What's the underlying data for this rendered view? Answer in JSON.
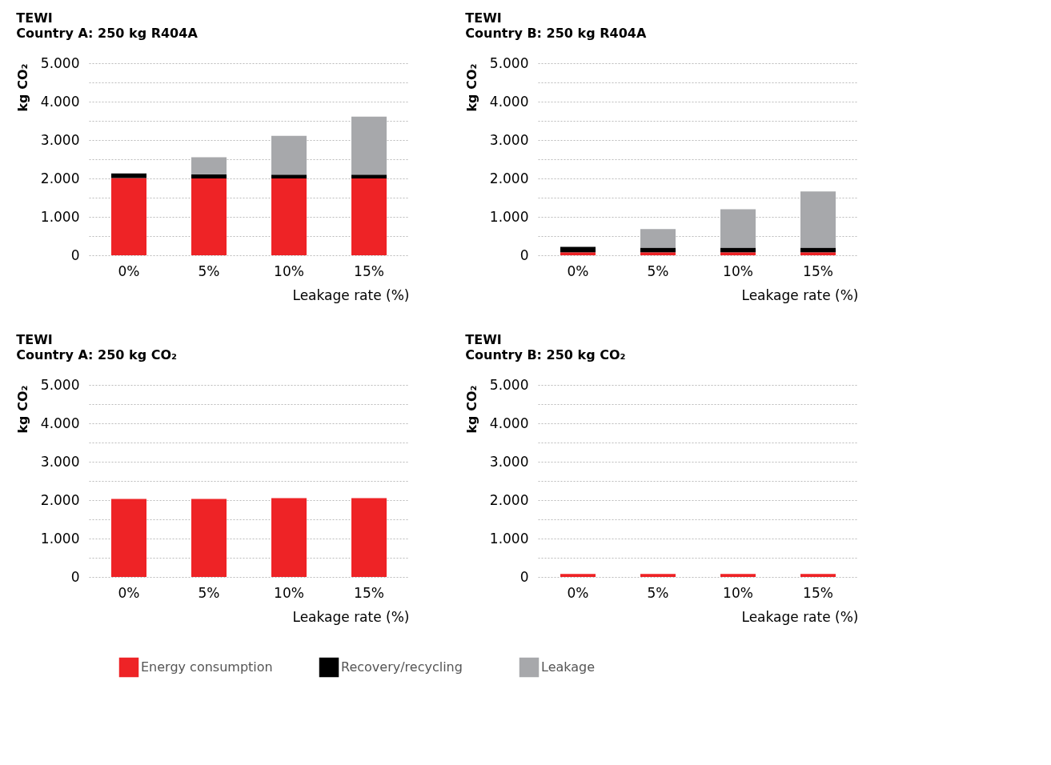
{
  "chart_data": [
    {
      "type": "bar",
      "stacked": true,
      "title": "TEWI",
      "subtitle": "Country A: 250 kg R404A",
      "xlabel": "Leakage rate (%)",
      "ylabel": "kg CO₂",
      "categories": [
        "0%",
        "5%",
        "10%",
        "15%"
      ],
      "series": [
        {
          "name": "Energy consumption",
          "color": "#ee2326",
          "values": [
            2010,
            2000,
            2000,
            2000
          ]
        },
        {
          "name": "Recovery/recycling",
          "color": "#000000",
          "values": [
            120,
            110,
            100,
            100
          ]
        },
        {
          "name": "Leakage",
          "color": "#a7a8ab",
          "values": [
            0,
            440,
            1010,
            1510
          ]
        }
      ],
      "ylim": [
        0,
        5000
      ],
      "yticks": [
        0,
        {
          "value": 500,
          "label": null
        },
        {
          "value": 1000,
          "label": "1.000"
        },
        {
          "value": 1500,
          "label": null
        },
        {
          "value": 2000,
          "label": "2.000"
        },
        {
          "value": 2500,
          "label": null
        },
        {
          "value": 3000,
          "label": "3.000"
        },
        {
          "value": 3500,
          "label": null
        },
        {
          "value": 4000,
          "label": "4.000"
        },
        {
          "value": 4500,
          "label": null
        },
        {
          "value": 5000,
          "label": "5.000"
        }
      ],
      "grid": "y",
      "legend": "bottom"
    },
    {
      "type": "bar",
      "stacked": true,
      "title": "TEWI",
      "subtitle": "Country B: 250 kg R404A",
      "xlabel": "Leakage rate (%)",
      "ylabel": "kg CO₂",
      "categories": [
        "0%",
        "5%",
        "10%",
        "15%"
      ],
      "series": [
        {
          "name": "Energy consumption",
          "color": "#ee2326",
          "values": [
            80,
            80,
            80,
            80
          ]
        },
        {
          "name": "Recovery/recycling",
          "color": "#000000",
          "values": [
            140,
            120,
            120,
            120
          ]
        },
        {
          "name": "Leakage",
          "color": "#a7a8ab",
          "values": [
            0,
            480,
            1000,
            1460
          ]
        }
      ],
      "ylim": [
        0,
        5000
      ],
      "yticks": [
        0,
        {
          "value": 500,
          "label": null
        },
        {
          "value": 1000,
          "label": "1.000"
        },
        {
          "value": 1500,
          "label": null
        },
        {
          "value": 2000,
          "label": "2.000"
        },
        {
          "value": 2500,
          "label": null
        },
        {
          "value": 3000,
          "label": "3.000"
        },
        {
          "value": 3500,
          "label": null
        },
        {
          "value": 4000,
          "label": "4.000"
        },
        {
          "value": 4500,
          "label": null
        },
        {
          "value": 5000,
          "label": "5.000"
        }
      ],
      "grid": "y",
      "legend": "bottom"
    },
    {
      "type": "bar",
      "stacked": true,
      "title": "TEWI",
      "subtitle": "Country A: 250 kg CO₂",
      "xlabel": "Leakage rate (%)",
      "ylabel": "kg CO₂",
      "categories": [
        "0%",
        "5%",
        "10%",
        "15%"
      ],
      "series": [
        {
          "name": "Energy consumption",
          "color": "#ee2326",
          "values": [
            2030,
            2030,
            2050,
            2050
          ]
        }
      ],
      "ylim": [
        0,
        5000
      ],
      "yticks": [
        0,
        {
          "value": 500,
          "label": null
        },
        {
          "value": 1000,
          "label": "1.000"
        },
        {
          "value": 1500,
          "label": null
        },
        {
          "value": 2000,
          "label": "2.000"
        },
        {
          "value": 2500,
          "label": null
        },
        {
          "value": 3000,
          "label": "3.000"
        },
        {
          "value": 3500,
          "label": null
        },
        {
          "value": 4000,
          "label": "4.000"
        },
        {
          "value": 4500,
          "label": null
        },
        {
          "value": 5000,
          "label": "5.000"
        }
      ],
      "grid": "y",
      "legend": "bottom"
    },
    {
      "type": "bar",
      "stacked": true,
      "title": "TEWI",
      "subtitle": "Country B: 250 kg CO₂",
      "xlabel": "Leakage rate (%)",
      "ylabel": "kg CO₂",
      "categories": [
        "0%",
        "5%",
        "10%",
        "15%"
      ],
      "series": [
        {
          "name": "Energy consumption",
          "color": "#ee2326",
          "values": [
            80,
            80,
            80,
            80
          ]
        }
      ],
      "ylim": [
        0,
        5000
      ],
      "yticks": [
        0,
        {
          "value": 500,
          "label": null
        },
        {
          "value": 1000,
          "label": "1.000"
        },
        {
          "value": 1500,
          "label": null
        },
        {
          "value": 2000,
          "label": "2.000"
        },
        {
          "value": 2500,
          "label": null
        },
        {
          "value": 3000,
          "label": "3.000"
        },
        {
          "value": 3500,
          "label": null
        },
        {
          "value": 4000,
          "label": "4.000"
        },
        {
          "value": 4500,
          "label": null
        },
        {
          "value": 5000,
          "label": "5.000"
        }
      ],
      "grid": "y",
      "legend": "bottom"
    }
  ]
}
